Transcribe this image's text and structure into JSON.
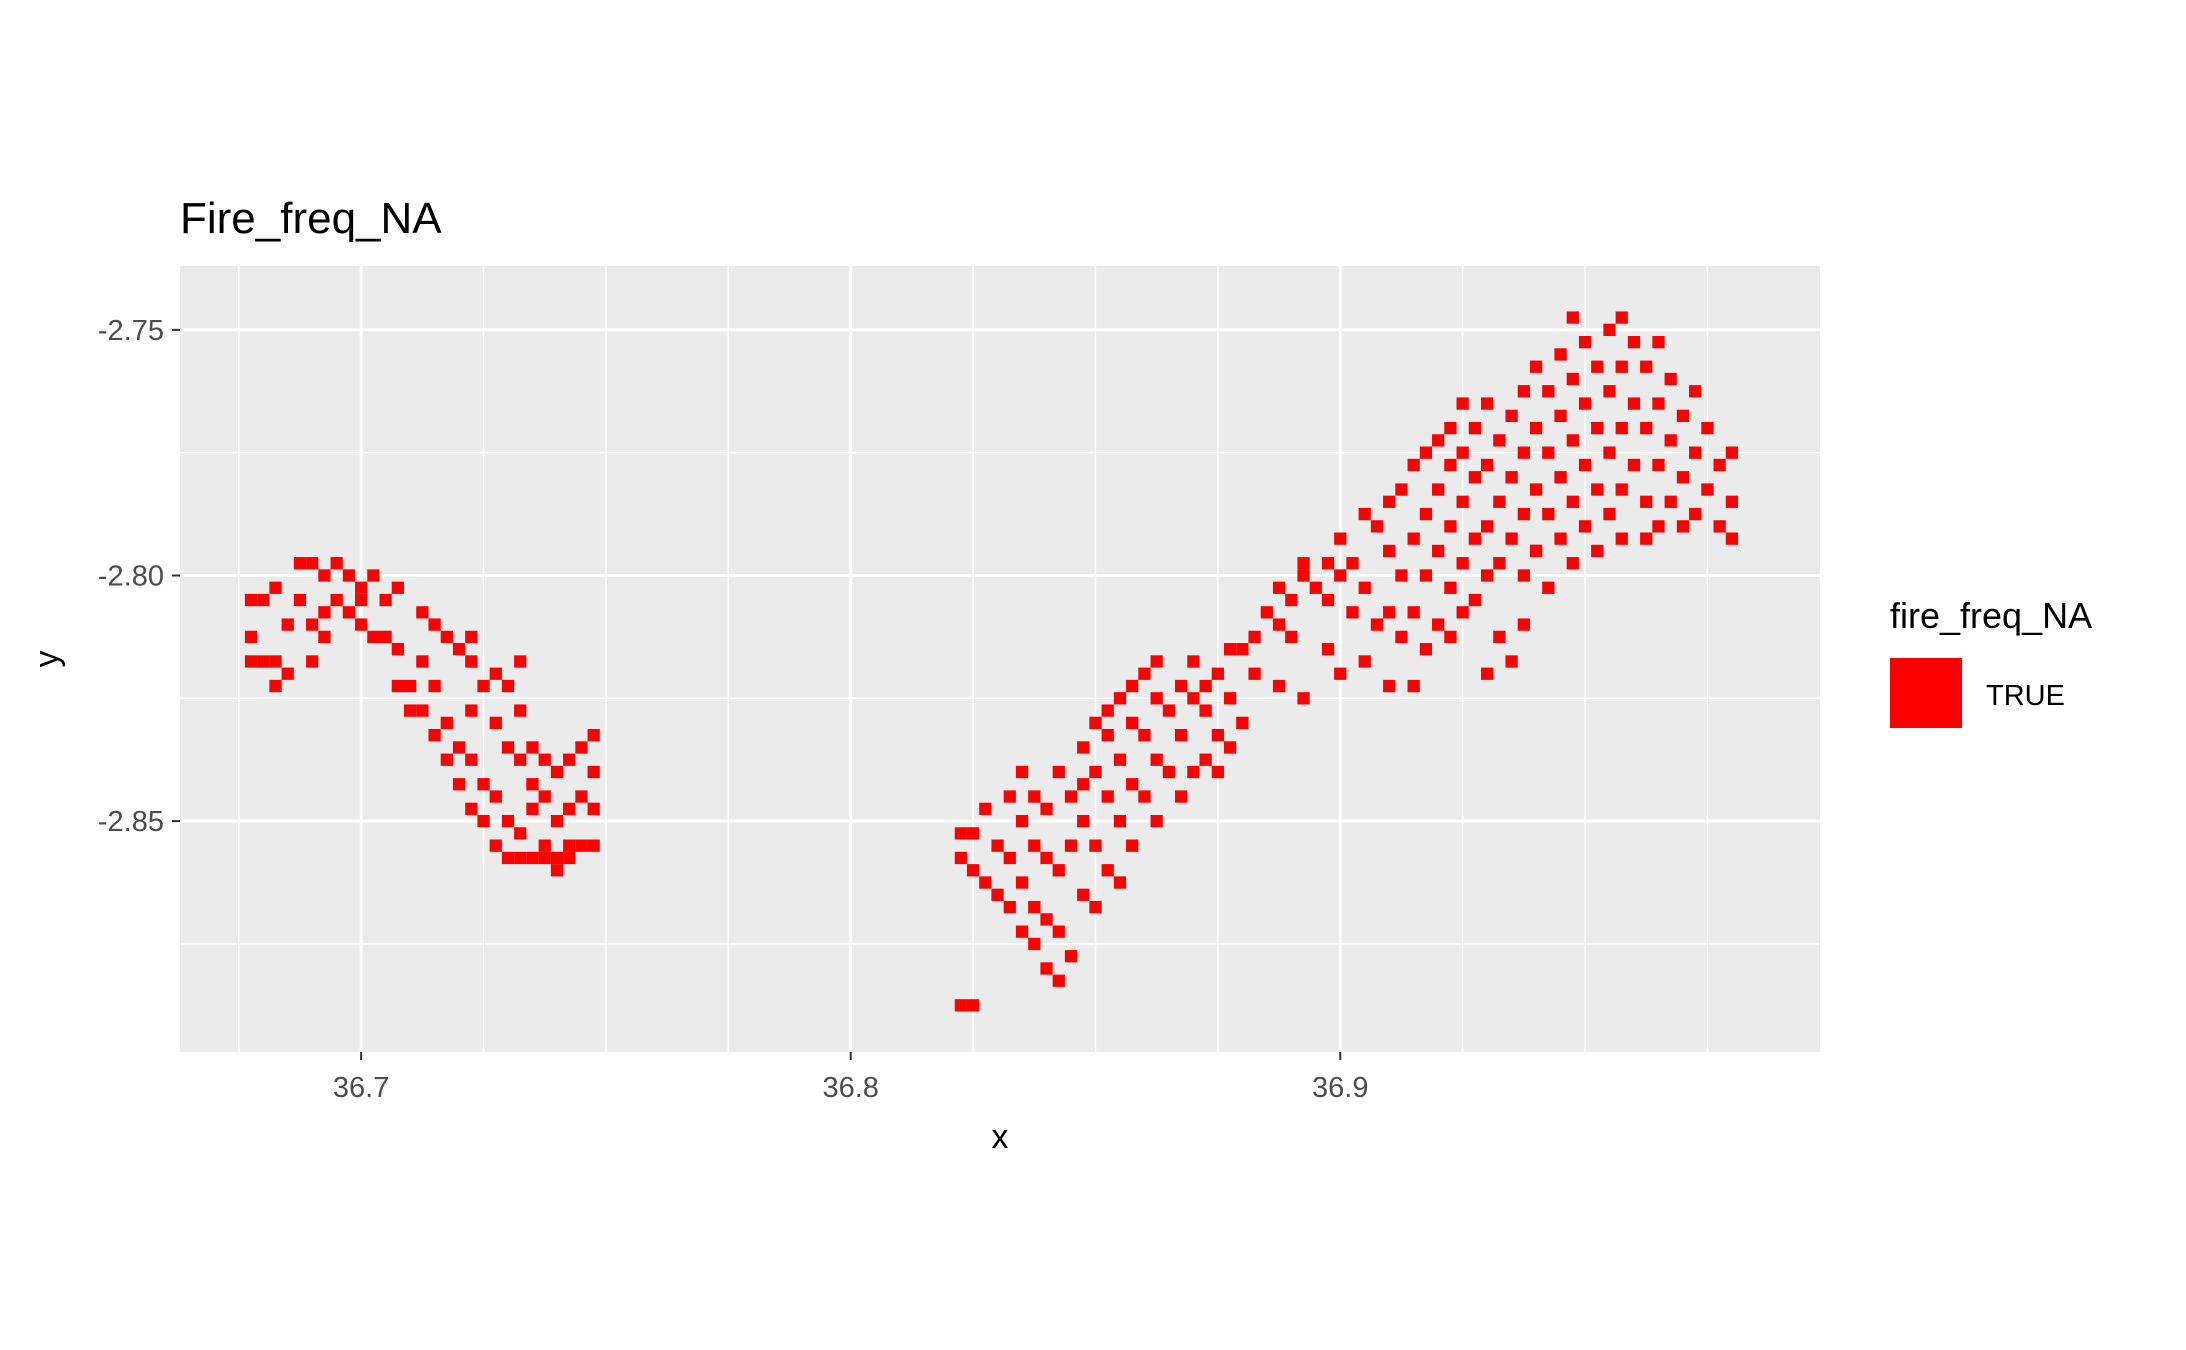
{
  "chart_data": {
    "type": "heatmap",
    "title": "Fire_freq_NA",
    "xlabel": "x",
    "ylabel": "y",
    "xlim": [
      36.663,
      36.998
    ],
    "ylim": [
      -2.897,
      -2.737
    ],
    "x_ticks": [
      36.7,
      36.8,
      36.9
    ],
    "x_tick_labels": [
      "36.7",
      "36.8",
      "36.9"
    ],
    "y_ticks": [
      -2.75,
      -2.8,
      -2.85
    ],
    "y_tick_labels": [
      "-2.75",
      "-2.80",
      "-2.85"
    ],
    "grid": true,
    "legend": {
      "title": "fire_freq_NA",
      "position": "right",
      "entries": [
        {
          "label": "TRUE",
          "color": "#ff0000"
        }
      ]
    },
    "fill_color": "#ff0000",
    "cell_size": [
      0.0025,
      0.0025
    ],
    "cells": [
      [
        36.6775,
        -2.8175
      ],
      [
        36.6775,
        -2.8125
      ],
      [
        36.6775,
        -2.805
      ],
      [
        36.68,
        -2.8175
      ],
      [
        36.68,
        -2.805
      ],
      [
        36.6825,
        -2.8175
      ],
      [
        36.6825,
        -2.8225
      ],
      [
        36.6825,
        -2.8025
      ],
      [
        36.685,
        -2.82
      ],
      [
        36.685,
        -2.81
      ],
      [
        36.6875,
        -2.805
      ],
      [
        36.6875,
        -2.7975
      ],
      [
        36.69,
        -2.7975
      ],
      [
        36.69,
        -2.81
      ],
      [
        36.69,
        -2.8175
      ],
      [
        36.6925,
        -2.8
      ],
      [
        36.6925,
        -2.8075
      ],
      [
        36.6925,
        -2.8125
      ],
      [
        36.695,
        -2.7975
      ],
      [
        36.695,
        -2.805
      ],
      [
        36.6975,
        -2.8
      ],
      [
        36.6975,
        -2.8075
      ],
      [
        36.7,
        -2.805
      ],
      [
        36.7,
        -2.81
      ],
      [
        36.7025,
        -2.8125
      ],
      [
        36.705,
        -2.805
      ],
      [
        36.705,
        -2.8125
      ],
      [
        36.7075,
        -2.815
      ],
      [
        36.7075,
        -2.8225
      ],
      [
        36.71,
        -2.8225
      ],
      [
        36.71,
        -2.8275
      ],
      [
        36.7125,
        -2.8275
      ],
      [
        36.7125,
        -2.8175
      ],
      [
        36.715,
        -2.8325
      ],
      [
        36.715,
        -2.8225
      ],
      [
        36.7175,
        -2.8375
      ],
      [
        36.7175,
        -2.83
      ],
      [
        36.72,
        -2.8425
      ],
      [
        36.72,
        -2.835
      ],
      [
        36.7225,
        -2.8475
      ],
      [
        36.7225,
        -2.8375
      ],
      [
        36.725,
        -2.85
      ],
      [
        36.725,
        -2.8425
      ],
      [
        36.7275,
        -2.855
      ],
      [
        36.7275,
        -2.845
      ],
      [
        36.73,
        -2.8575
      ],
      [
        36.73,
        -2.85
      ],
      [
        36.7325,
        -2.8575
      ],
      [
        36.7325,
        -2.8525
      ],
      [
        36.7,
        -2.8025
      ],
      [
        36.7025,
        -2.8
      ],
      [
        36.7075,
        -2.8025
      ],
      [
        36.7125,
        -2.8075
      ],
      [
        36.715,
        -2.81
      ],
      [
        36.7175,
        -2.8125
      ],
      [
        36.72,
        -2.815
      ],
      [
        36.7225,
        -2.8175
      ],
      [
        36.7225,
        -2.8275
      ],
      [
        36.725,
        -2.8225
      ],
      [
        36.7275,
        -2.83
      ],
      [
        36.73,
        -2.835
      ],
      [
        36.7325,
        -2.8375
      ],
      [
        36.735,
        -2.8425
      ],
      [
        36.735,
        -2.8475
      ],
      [
        36.7375,
        -2.845
      ],
      [
        36.7375,
        -2.855
      ],
      [
        36.74,
        -2.85
      ],
      [
        36.74,
        -2.8575
      ],
      [
        36.7425,
        -2.8475
      ],
      [
        36.7425,
        -2.855
      ],
      [
        36.745,
        -2.845
      ],
      [
        36.745,
        -2.855
      ],
      [
        36.745,
        -2.835
      ],
      [
        36.7475,
        -2.84
      ],
      [
        36.7475,
        -2.8325
      ],
      [
        36.7475,
        -2.8475
      ],
      [
        36.7475,
        -2.855
      ],
      [
        36.7425,
        -2.8375
      ],
      [
        36.74,
        -2.84
      ],
      [
        36.7375,
        -2.8375
      ],
      [
        36.735,
        -2.835
      ],
      [
        36.7325,
        -2.8275
      ],
      [
        36.73,
        -2.8225
      ],
      [
        36.7275,
        -2.82
      ],
      [
        36.7225,
        -2.8125
      ],
      [
        36.735,
        -2.8575
      ],
      [
        36.7375,
        -2.8575
      ],
      [
        36.74,
        -2.86
      ],
      [
        36.7425,
        -2.8575
      ],
      [
        36.7325,
        -2.8175
      ],
      [
        36.8225,
        -2.8875
      ],
      [
        36.8225,
        -2.8525
      ],
      [
        36.8225,
        -2.8575
      ],
      [
        36.825,
        -2.8875
      ],
      [
        36.825,
        -2.8525
      ],
      [
        36.825,
        -2.86
      ],
      [
        36.8275,
        -2.8475
      ],
      [
        36.8275,
        -2.8625
      ],
      [
        36.83,
        -2.855
      ],
      [
        36.83,
        -2.865
      ],
      [
        36.8325,
        -2.8575
      ],
      [
        36.8325,
        -2.8675
      ],
      [
        36.835,
        -2.8625
      ],
      [
        36.835,
        -2.8725
      ],
      [
        36.8375,
        -2.8675
      ],
      [
        36.8375,
        -2.875
      ],
      [
        36.84,
        -2.87
      ],
      [
        36.84,
        -2.88
      ],
      [
        36.8425,
        -2.8725
      ],
      [
        36.8425,
        -2.8825
      ],
      [
        36.845,
        -2.8775
      ],
      [
        36.8325,
        -2.845
      ],
      [
        36.835,
        -2.85
      ],
      [
        36.835,
        -2.84
      ],
      [
        36.8375,
        -2.845
      ],
      [
        36.8375,
        -2.855
      ],
      [
        36.84,
        -2.8475
      ],
      [
        36.84,
        -2.8575
      ],
      [
        36.8425,
        -2.84
      ],
      [
        36.8425,
        -2.86
      ],
      [
        36.845,
        -2.845
      ],
      [
        36.845,
        -2.855
      ],
      [
        36.8475,
        -2.835
      ],
      [
        36.8475,
        -2.85
      ],
      [
        36.8475,
        -2.865
      ],
      [
        36.85,
        -2.84
      ],
      [
        36.85,
        -2.855
      ],
      [
        36.85,
        -2.8675
      ],
      [
        36.8525,
        -2.8325
      ],
      [
        36.8525,
        -2.845
      ],
      [
        36.8525,
        -2.86
      ],
      [
        36.855,
        -2.8375
      ],
      [
        36.855,
        -2.85
      ],
      [
        36.855,
        -2.8625
      ],
      [
        36.8575,
        -2.83
      ],
      [
        36.8575,
        -2.8425
      ],
      [
        36.8575,
        -2.855
      ],
      [
        36.86,
        -2.8325
      ],
      [
        36.86,
        -2.845
      ],
      [
        36.8625,
        -2.825
      ],
      [
        36.8625,
        -2.8375
      ],
      [
        36.8625,
        -2.85
      ],
      [
        36.865,
        -2.8275
      ],
      [
        36.865,
        -2.84
      ],
      [
        36.8675,
        -2.8225
      ],
      [
        36.8675,
        -2.8325
      ],
      [
        36.8675,
        -2.845
      ],
      [
        36.87,
        -2.825
      ],
      [
        36.87,
        -2.84
      ],
      [
        36.8725,
        -2.8275
      ],
      [
        36.8575,
        -2.8225
      ],
      [
        36.86,
        -2.82
      ],
      [
        36.8625,
        -2.8175
      ],
      [
        36.855,
        -2.825
      ],
      [
        36.8525,
        -2.8275
      ],
      [
        36.85,
        -2.83
      ],
      [
        36.8475,
        -2.8425
      ],
      [
        36.8725,
        -2.8375
      ],
      [
        36.875,
        -2.8325
      ],
      [
        36.875,
        -2.84
      ],
      [
        36.8775,
        -2.835
      ],
      [
        36.88,
        -2.83
      ],
      [
        36.8775,
        -2.825
      ],
      [
        36.875,
        -2.82
      ],
      [
        36.8725,
        -2.8225
      ],
      [
        36.87,
        -2.8175
      ],
      [
        36.88,
        -2.815
      ],
      [
        36.8825,
        -2.8125
      ],
      [
        36.885,
        -2.8075
      ],
      [
        36.8875,
        -2.81
      ],
      [
        36.8875,
        -2.8025
      ],
      [
        36.89,
        -2.805
      ],
      [
        36.89,
        -2.8125
      ],
      [
        36.8925,
        -2.8
      ],
      [
        36.8925,
        -2.7975
      ],
      [
        36.895,
        -2.8025
      ],
      [
        36.8975,
        -2.7975
      ],
      [
        36.8975,
        -2.805
      ],
      [
        36.9,
        -2.7925
      ],
      [
        36.9,
        -2.8
      ],
      [
        36.9025,
        -2.7975
      ],
      [
        36.9025,
        -2.8075
      ],
      [
        36.905,
        -2.7875
      ],
      [
        36.905,
        -2.8025
      ],
      [
        36.9075,
        -2.79
      ],
      [
        36.9075,
        -2.81
      ],
      [
        36.91,
        -2.785
      ],
      [
        36.91,
        -2.795
      ],
      [
        36.91,
        -2.8075
      ],
      [
        36.9125,
        -2.7825
      ],
      [
        36.9125,
        -2.8
      ],
      [
        36.9125,
        -2.8125
      ],
      [
        36.915,
        -2.7775
      ],
      [
        36.915,
        -2.7925
      ],
      [
        36.915,
        -2.8075
      ],
      [
        36.9175,
        -2.775
      ],
      [
        36.9175,
        -2.7875
      ],
      [
        36.9175,
        -2.8
      ],
      [
        36.9175,
        -2.815
      ],
      [
        36.92,
        -2.7725
      ],
      [
        36.92,
        -2.7825
      ],
      [
        36.92,
        -2.795
      ],
      [
        36.92,
        -2.81
      ],
      [
        36.9225,
        -2.77
      ],
      [
        36.9225,
        -2.7775
      ],
      [
        36.9225,
        -2.79
      ],
      [
        36.9225,
        -2.8025
      ],
      [
        36.9225,
        -2.8125
      ],
      [
        36.925,
        -2.765
      ],
      [
        36.925,
        -2.775
      ],
      [
        36.925,
        -2.785
      ],
      [
        36.925,
        -2.7975
      ],
      [
        36.925,
        -2.8075
      ],
      [
        36.9275,
        -2.77
      ],
      [
        36.9275,
        -2.78
      ],
      [
        36.9275,
        -2.7925
      ],
      [
        36.9275,
        -2.805
      ],
      [
        36.93,
        -2.765
      ],
      [
        36.93,
        -2.7775
      ],
      [
        36.93,
        -2.79
      ],
      [
        36.93,
        -2.8
      ],
      [
        36.9325,
        -2.7725
      ],
      [
        36.9325,
        -2.785
      ],
      [
        36.9325,
        -2.7975
      ],
      [
        36.935,
        -2.7675
      ],
      [
        36.935,
        -2.78
      ],
      [
        36.935,
        -2.7925
      ],
      [
        36.9375,
        -2.7625
      ],
      [
        36.9375,
        -2.775
      ],
      [
        36.9375,
        -2.7875
      ],
      [
        36.9375,
        -2.8
      ],
      [
        36.94,
        -2.7575
      ],
      [
        36.94,
        -2.77
      ],
      [
        36.94,
        -2.7825
      ],
      [
        36.94,
        -2.795
      ],
      [
        36.9425,
        -2.7625
      ],
      [
        36.9425,
        -2.775
      ],
      [
        36.9425,
        -2.7875
      ],
      [
        36.945,
        -2.755
      ],
      [
        36.945,
        -2.7675
      ],
      [
        36.945,
        -2.78
      ],
      [
        36.945,
        -2.7925
      ],
      [
        36.9475,
        -2.7475
      ],
      [
        36.9475,
        -2.76
      ],
      [
        36.9475,
        -2.7725
      ],
      [
        36.9475,
        -2.785
      ],
      [
        36.95,
        -2.7525
      ],
      [
        36.95,
        -2.765
      ],
      [
        36.95,
        -2.7775
      ],
      [
        36.95,
        -2.79
      ],
      [
        36.9525,
        -2.7575
      ],
      [
        36.9525,
        -2.77
      ],
      [
        36.9525,
        -2.7825
      ],
      [
        36.955,
        -2.75
      ],
      [
        36.955,
        -2.7625
      ],
      [
        36.955,
        -2.775
      ],
      [
        36.955,
        -2.7875
      ],
      [
        36.9575,
        -2.7475
      ],
      [
        36.9575,
        -2.7575
      ],
      [
        36.9575,
        -2.77
      ],
      [
        36.9575,
        -2.7825
      ],
      [
        36.96,
        -2.7525
      ],
      [
        36.96,
        -2.765
      ],
      [
        36.96,
        -2.7775
      ],
      [
        36.9625,
        -2.7575
      ],
      [
        36.9625,
        -2.77
      ],
      [
        36.9625,
        -2.785
      ],
      [
        36.965,
        -2.7525
      ],
      [
        36.965,
        -2.765
      ],
      [
        36.965,
        -2.7775
      ],
      [
        36.9675,
        -2.76
      ],
      [
        36.9675,
        -2.7725
      ],
      [
        36.9675,
        -2.785
      ],
      [
        36.97,
        -2.7675
      ],
      [
        36.97,
        -2.78
      ],
      [
        36.9725,
        -2.7625
      ],
      [
        36.9725,
        -2.775
      ],
      [
        36.9725,
        -2.7875
      ],
      [
        36.975,
        -2.77
      ],
      [
        36.975,
        -2.7825
      ],
      [
        36.9775,
        -2.7775
      ],
      [
        36.9775,
        -2.79
      ],
      [
        36.98,
        -2.775
      ],
      [
        36.98,
        -2.785
      ],
      [
        36.98,
        -2.7925
      ],
      [
        36.9425,
        -2.8025
      ],
      [
        36.9375,
        -2.81
      ],
      [
        36.935,
        -2.8175
      ],
      [
        36.93,
        -2.82
      ],
      [
        36.9325,
        -2.8125
      ],
      [
        36.94,
        -2.795
      ],
      [
        36.9475,
        -2.7975
      ],
      [
        36.9525,
        -2.795
      ],
      [
        36.9575,
        -2.7925
      ],
      [
        36.965,
        -2.79
      ],
      [
        36.97,
        -2.79
      ],
      [
        36.9625,
        -2.7925
      ],
      [
        36.8775,
        -2.815
      ],
      [
        36.8825,
        -2.82
      ],
      [
        36.8875,
        -2.8225
      ],
      [
        36.8925,
        -2.825
      ],
      [
        36.8975,
        -2.815
      ],
      [
        36.9,
        -2.82
      ],
      [
        36.905,
        -2.8175
      ],
      [
        36.91,
        -2.8225
      ],
      [
        36.915,
        -2.8225
      ]
    ]
  }
}
